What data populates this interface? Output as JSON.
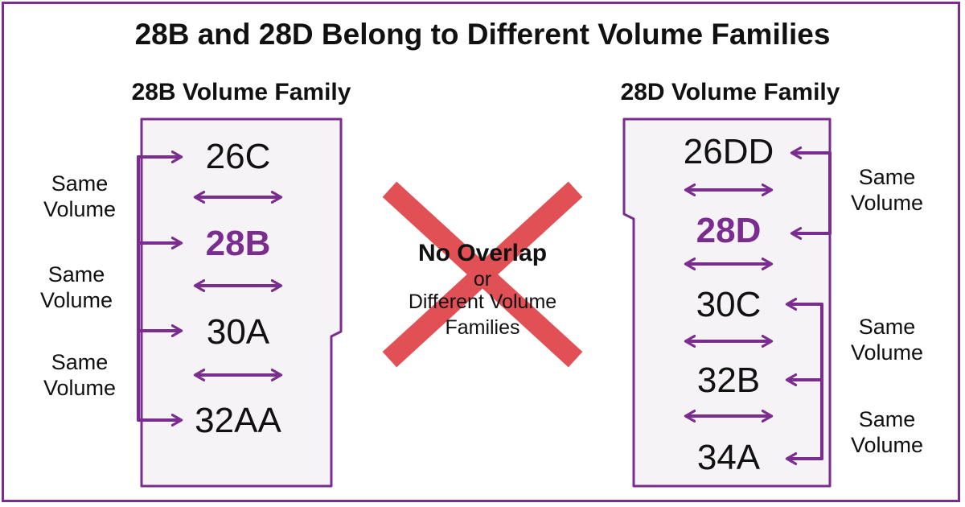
{
  "title": "28B and 28D Belong to Different Volume Families",
  "left_family": {
    "title": "28B Volume Family",
    "sizes": [
      "26C",
      "28B",
      "30A",
      "32AA"
    ],
    "highlight": "28B",
    "side_labels": [
      [
        "Same",
        "Volume"
      ],
      [
        "Same",
        "Volume"
      ],
      [
        "Same",
        "Volume"
      ]
    ]
  },
  "right_family": {
    "title": "28D Volume Family",
    "sizes": [
      "26DD",
      "28D",
      "30C",
      "32B",
      "34A"
    ],
    "highlight": "28D",
    "side_labels": [
      [
        "Same",
        "Volume"
      ],
      [
        "Same",
        "Volume"
      ],
      [
        "Same",
        "Volume"
      ]
    ]
  },
  "center": {
    "line1": "No Overlap",
    "line2": "or",
    "line3": "Different Volume",
    "line4": "Families"
  },
  "colors": {
    "accent": "#7a2d8e",
    "cross": "#e0474c",
    "panel": "#f6f3f7"
  }
}
